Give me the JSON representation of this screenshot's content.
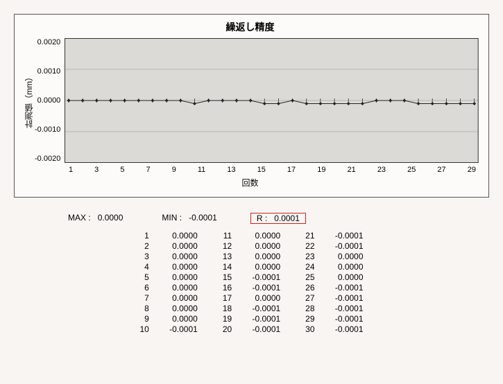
{
  "chart": {
    "type": "line",
    "title": "繰返し精度",
    "ylabel": "計測値（mm）",
    "xlabel": "回数",
    "ylim": [
      -0.002,
      0.002
    ],
    "ytick_format": "0.0000",
    "yticks": [
      "0.0020",
      "0.0010",
      "0.0000",
      "-0.0010",
      "-0.0020"
    ],
    "xtick_labels": [
      "1",
      "3",
      "5",
      "7",
      "9",
      "11",
      "13",
      "15",
      "17",
      "19",
      "21",
      "23",
      "25",
      "27",
      "29"
    ],
    "x_count": 30,
    "grid_bg": "#dcdad6",
    "grid_color": "#b8b6b3",
    "axis_color": "#333333",
    "line_color": "#222222",
    "marker_style": "diamond",
    "marker_size": 5,
    "line_width": 1,
    "values": [
      0.0,
      0.0,
      0.0,
      0.0,
      0.0,
      0.0,
      0.0,
      0.0,
      0.0,
      -0.0001,
      0.0,
      0.0,
      0.0,
      0.0,
      -0.0001,
      -0.0001,
      0.0,
      -0.0001,
      -0.0001,
      -0.0001,
      -0.0001,
      -0.0001,
      0.0,
      0.0,
      0.0,
      -0.0001,
      -0.0001,
      -0.0001,
      -0.0001,
      -0.0001
    ]
  },
  "stats": {
    "max_label": "MAX :",
    "max_value": "0.0000",
    "min_label": "MIN :",
    "min_value": "-0.0001",
    "r_label": "R :",
    "r_value": "0.0001",
    "highlight_color": "#c22222"
  },
  "table": {
    "rows": [
      {
        "i": "1",
        "v": "0.0000"
      },
      {
        "i": "2",
        "v": "0.0000"
      },
      {
        "i": "3",
        "v": "0.0000"
      },
      {
        "i": "4",
        "v": "0.0000"
      },
      {
        "i": "5",
        "v": "0.0000"
      },
      {
        "i": "6",
        "v": "0.0000"
      },
      {
        "i": "7",
        "v": "0.0000"
      },
      {
        "i": "8",
        "v": "0.0000"
      },
      {
        "i": "9",
        "v": "0.0000"
      },
      {
        "i": "10",
        "v": "-0.0001"
      },
      {
        "i": "11",
        "v": "0.0000"
      },
      {
        "i": "12",
        "v": "0.0000"
      },
      {
        "i": "13",
        "v": "0.0000"
      },
      {
        "i": "14",
        "v": "0.0000"
      },
      {
        "i": "15",
        "v": "-0.0001"
      },
      {
        "i": "16",
        "v": "-0.0001"
      },
      {
        "i": "17",
        "v": "0.0000"
      },
      {
        "i": "18",
        "v": "-0.0001"
      },
      {
        "i": "19",
        "v": "-0.0001"
      },
      {
        "i": "20",
        "v": "-0.0001"
      },
      {
        "i": "21",
        "v": "-0.0001"
      },
      {
        "i": "22",
        "v": "-0.0001"
      },
      {
        "i": "23",
        "v": "0.0000"
      },
      {
        "i": "24",
        "v": "0.0000"
      },
      {
        "i": "25",
        "v": "0.0000"
      },
      {
        "i": "26",
        "v": "-0.0001"
      },
      {
        "i": "27",
        "v": "-0.0001"
      },
      {
        "i": "28",
        "v": "-0.0001"
      },
      {
        "i": "29",
        "v": "-0.0001"
      },
      {
        "i": "30",
        "v": "-0.0001"
      }
    ]
  }
}
